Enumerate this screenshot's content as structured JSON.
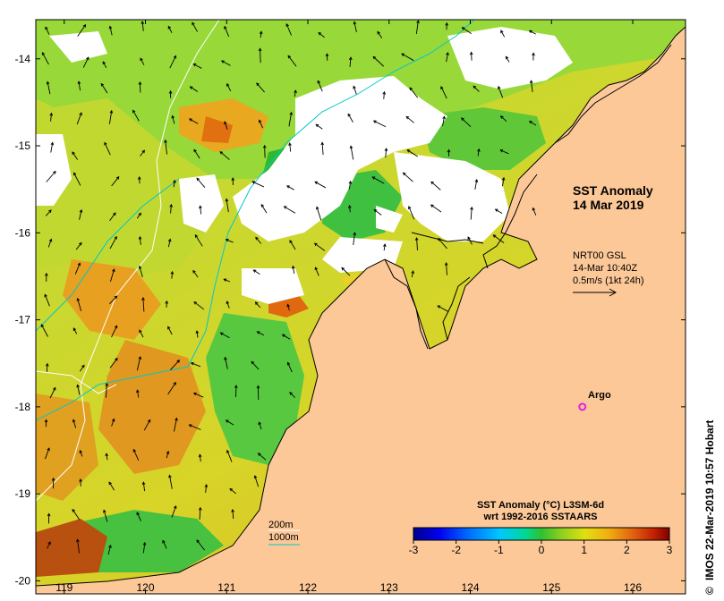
{
  "map": {
    "title_line1": "SST Anomaly",
    "title_line2": "14 Mar 2019",
    "current_line1": "NRT00 GSL",
    "current_line2": "14-Mar 10:40Z",
    "current_line3": "0.5m/s (1kt 24h)",
    "argo_label": "Argo",
    "contour_200": "200m",
    "contour_1000": "1000m",
    "land_color": "#fcc898",
    "contour_200_color": "#ffffff",
    "contour_1000_color": "#00c8c8",
    "argo_color": "#e020e0",
    "lon_ticks": [
      "119",
      "120",
      "121",
      "122",
      "123",
      "124",
      "125",
      "126"
    ],
    "lat_ticks": [
      "-14",
      "-15",
      "-16",
      "-17",
      "-18",
      "-19",
      "-20"
    ],
    "lon_range": [
      118.65,
      126.65
    ],
    "lat_range": [
      -20.15,
      -13.55
    ],
    "argo_position": [
      125.38,
      -18.0
    ],
    "current_arrow_length_mps": 0.5
  },
  "colorbar": {
    "title_line1": "SST Anomaly (°C) L3SM-6d",
    "title_line2": "wrt 1992-2016 SSTAARS",
    "ticks": [
      "-3",
      "-2",
      "-1",
      "0",
      "1",
      "2",
      "3"
    ],
    "range": [
      -3,
      3
    ],
    "colors": [
      "#000090",
      "#0000f0",
      "#0070ff",
      "#00c8ff",
      "#00d890",
      "#30c030",
      "#90d020",
      "#e0e010",
      "#f0b010",
      "#e06010",
      "#c02000",
      "#800000"
    ]
  },
  "credit": "IMOS 22-Mar-2019 10:57 Hobart",
  "credit_symbol": "©"
}
